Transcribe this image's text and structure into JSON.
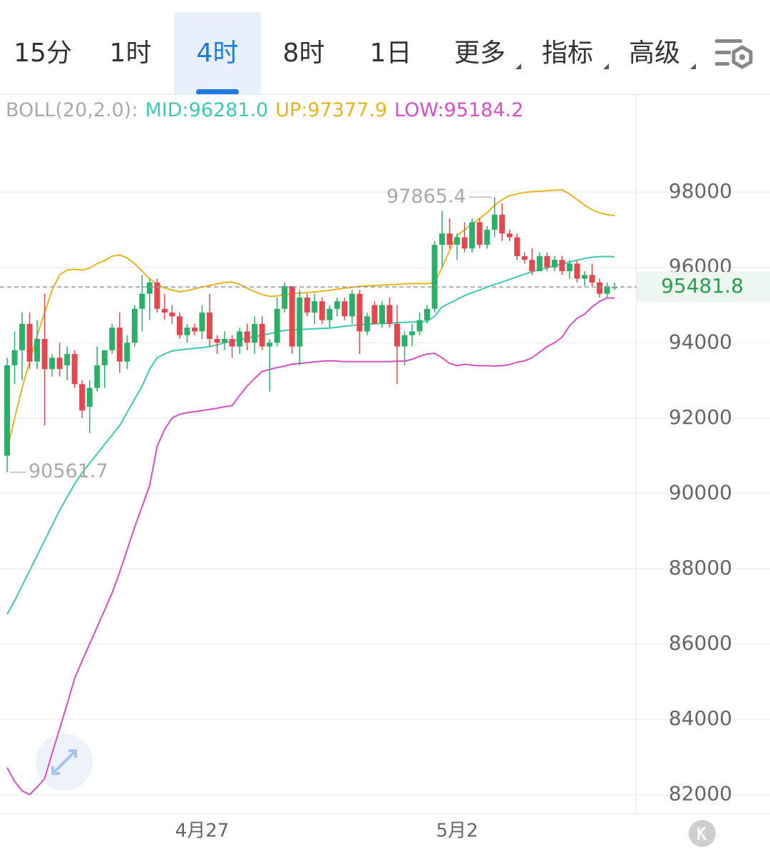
{
  "tabs": [
    "15分",
    "1时",
    "4时",
    "8时",
    "1日",
    "更多",
    "指标",
    "高级"
  ],
  "active_tab": "4时",
  "chart_data": {
    "type": "candlestick",
    "indicator": "BOLL(20,2.0):",
    "categories": [
      null,
      null,
      null,
      null,
      null,
      null,
      null,
      null,
      null,
      null,
      null,
      null,
      null,
      null,
      null,
      null,
      null,
      null,
      null,
      null,
      null,
      null,
      null,
      null,
      null,
      null,
      "4月27",
      null,
      null,
      null,
      null,
      null,
      null,
      null,
      null,
      null,
      null,
      null,
      null,
      null,
      null,
      null,
      null,
      null,
      null,
      null,
      null,
      null,
      null,
      null,
      null,
      null,
      null,
      null,
      null,
      null,
      null,
      null,
      null,
      null,
      "5月2",
      null,
      null,
      null,
      null,
      null,
      null,
      null,
      null,
      null,
      null,
      null,
      null,
      null,
      null,
      null,
      null,
      null,
      null,
      null,
      null,
      null
    ],
    "open": [
      91000,
      93400,
      93800,
      94500,
      93500,
      94100,
      93300,
      93600,
      93400,
      93700,
      92900,
      92300,
      92800,
      93400,
      93800,
      94400,
      93500,
      94000,
      94900,
      95300,
      95600,
      94900,
      94800,
      94700,
      94200,
      94400,
      94300,
      94800,
      94100,
      94000,
      94100,
      93900,
      94300,
      94000,
      94500,
      93900,
      94000,
      94900,
      95500,
      93900,
      95200,
      94800,
      95100,
      94600,
      94900,
      95100,
      94700,
      95300,
      94300,
      95000,
      94500,
      95000,
      94500,
      93900,
      94200,
      94300,
      94600,
      94900,
      96600,
      96900,
      96600,
      96800,
      96500,
      97200,
      96600,
      97000,
      97400,
      96900,
      96800,
      96300,
      96200,
      95900,
      96300,
      96000,
      96200,
      95900,
      96100,
      95700,
      95800,
      95600,
      95300,
      95450
    ],
    "high": [
      93600,
      94300,
      94800,
      94800,
      94600,
      95300,
      93700,
      94000,
      93900,
      93800,
      93000,
      93000,
      93900,
      93800,
      94500,
      94800,
      94200,
      95000,
      95800,
      95700,
      95700,
      95300,
      95000,
      94800,
      94500,
      94500,
      95000,
      95300,
      94200,
      94300,
      94200,
      94400,
      94500,
      94700,
      94700,
      94100,
      95200,
      95600,
      95500,
      95400,
      95300,
      95300,
      95200,
      95000,
      95200,
      95200,
      95400,
      95400,
      94800,
      95100,
      95100,
      95200,
      95000,
      94300,
      94500,
      94800,
      95000,
      96700,
      97500,
      97300,
      96900,
      97200,
      97300,
      97300,
      97100,
      97865.4,
      97700,
      97000,
      96900,
      96400,
      96500,
      96400,
      96400,
      96300,
      96300,
      96200,
      96200,
      95900,
      96100,
      95700,
      95600,
      95600
    ],
    "low": [
      90561.7,
      92900,
      93000,
      93300,
      93300,
      91800,
      93100,
      93100,
      93000,
      92800,
      92000,
      91600,
      92700,
      92800,
      93700,
      93200,
      93300,
      93900,
      94300,
      94600,
      94800,
      94600,
      94500,
      94100,
      94000,
      94200,
      94100,
      93900,
      93700,
      93800,
      93600,
      93700,
      93800,
      93700,
      93800,
      92700,
      93900,
      94800,
      93700,
      93400,
      94700,
      94500,
      94500,
      94400,
      94700,
      94600,
      94500,
      93700,
      94200,
      94500,
      94400,
      94400,
      92900,
      93400,
      93900,
      94200,
      94500,
      94800,
      96000,
      96500,
      96200,
      96400,
      96400,
      96500,
      96500,
      96800,
      96700,
      96700,
      96200,
      96100,
      95800,
      95900,
      95900,
      95900,
      95800,
      95700,
      95600,
      95500,
      95500,
      95200,
      95200,
      95400
    ],
    "close": [
      93400,
      93800,
      94500,
      93500,
      94100,
      93300,
      93600,
      93300,
      93700,
      92900,
      92200,
      92800,
      93400,
      93800,
      94400,
      93500,
      94000,
      94900,
      95300,
      95600,
      94900,
      94800,
      94700,
      94200,
      94400,
      94300,
      94800,
      94100,
      94000,
      94100,
      93900,
      94300,
      94000,
      94500,
      93900,
      94000,
      94900,
      95500,
      93900,
      95200,
      94800,
      95100,
      94600,
      94900,
      95100,
      94700,
      95300,
      94300,
      94700,
      94500,
      95000,
      94500,
      93900,
      94200,
      94300,
      94600,
      94900,
      96600,
      96900,
      96600,
      96800,
      96500,
      97200,
      96600,
      97000,
      97400,
      96900,
      96800,
      96300,
      96200,
      95900,
      96300,
      96000,
      96200,
      95900,
      96100,
      95700,
      95800,
      95600,
      95300,
      95500,
      95481.8
    ],
    "up_color": "#2bb06a",
    "down_color": "#e5474f",
    "series": [
      {
        "name": "MID:96281.0",
        "color": "#3cc9b5",
        "values": [
          86790,
          87150,
          87550,
          87950,
          88350,
          88750,
          89150,
          89550,
          89900,
          90250,
          90550,
          90800,
          91050,
          91300,
          91550,
          91800,
          92150,
          92500,
          92850,
          93300,
          93600,
          93700,
          93780,
          93810,
          93830,
          93850,
          93870,
          93900,
          93940,
          94000,
          94040,
          94080,
          94120,
          94160,
          94200,
          94240,
          94280,
          94330,
          94340,
          94350,
          94360,
          94370,
          94380,
          94390,
          94410,
          94440,
          94460,
          94480,
          94490,
          94500,
          94510,
          94520,
          94530,
          94540,
          94550,
          94560,
          94570,
          94700,
          94950,
          95050,
          95150,
          95250,
          95330,
          95400,
          95480,
          95550,
          95610,
          95680,
          95750,
          95820,
          95890,
          95940,
          95990,
          96040,
          96090,
          96140,
          96190,
          96240,
          96270,
          96285,
          96290,
          96281.0
        ]
      },
      {
        "name": "UP:97377.9",
        "color": "#e8b41e",
        "values": [
          91150,
          92000,
          92800,
          93500,
          94190,
          94800,
          95400,
          95800,
          95930,
          95950,
          95930,
          95980,
          96100,
          96180,
          96300,
          96330,
          96250,
          96100,
          95900,
          95700,
          95550,
          95450,
          95400,
          95350,
          95380,
          95430,
          95480,
          95520,
          95560,
          95600,
          95610,
          95550,
          95450,
          95350,
          95280,
          95230,
          95240,
          95270,
          95300,
          95320,
          95330,
          95350,
          95370,
          95390,
          95420,
          95450,
          95470,
          95500,
          95510,
          95520,
          95530,
          95540,
          95550,
          95560,
          95570,
          95570,
          95570,
          95580,
          96000,
          96450,
          96850,
          97000,
          97150,
          97300,
          97450,
          97650,
          97800,
          97900,
          97950,
          97990,
          98010,
          98020,
          98040,
          98050,
          98060,
          97950,
          97800,
          97650,
          97530,
          97450,
          97400,
          97377.9
        ]
      },
      {
        "name": "LOW:95184.2",
        "color": "#d94fc3",
        "values": [
          82720,
          82350,
          82100,
          82000,
          82200,
          82430,
          83100,
          83750,
          84400,
          85090,
          85550,
          86000,
          86450,
          86900,
          87360,
          87900,
          88500,
          89100,
          89650,
          90210,
          91250,
          91700,
          92000,
          92100,
          92140,
          92170,
          92200,
          92230,
          92260,
          92300,
          92330,
          92600,
          92850,
          93050,
          93240,
          93290,
          93340,
          93380,
          93430,
          93450,
          93470,
          93490,
          93510,
          93520,
          93510,
          93500,
          93500,
          93500,
          93500,
          93500,
          93500,
          93500,
          93510,
          93510,
          93560,
          93640,
          93700,
          93720,
          93600,
          93450,
          93390,
          93430,
          93400,
          93390,
          93390,
          93380,
          93390,
          93420,
          93480,
          93520,
          93600,
          93750,
          93900,
          94000,
          94150,
          94450,
          94650,
          94760,
          94950,
          95100,
          95190,
          95184.2
        ]
      }
    ],
    "last_price": 95481.8,
    "high_label": 97865.4,
    "low_label": 90561.7,
    "ylim": [
      81500,
      100580
    ],
    "yticks": [
      82000,
      84000,
      86000,
      88000,
      90000,
      92000,
      94000,
      96000,
      98000
    ],
    "grid": true
  }
}
